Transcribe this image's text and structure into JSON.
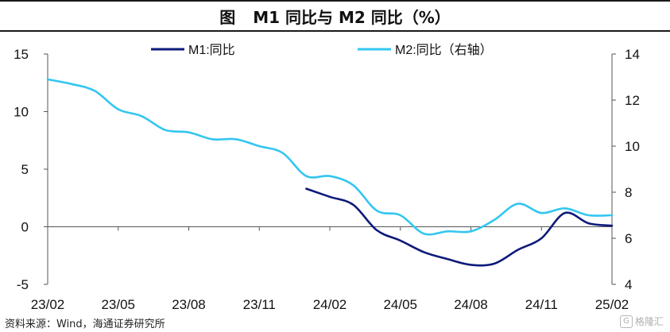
{
  "header": {
    "figure_label": "图",
    "title": "M1 同比与 M2 同比（%）"
  },
  "footer": {
    "source": "资料来源：Wind，海通证券研究所",
    "watermark": "格隆汇"
  },
  "chart_data": {
    "type": "line",
    "x_ticks": [
      "23/02",
      "23/05",
      "23/08",
      "23/11",
      "24/02",
      "24/05",
      "24/08",
      "24/11",
      "25/02"
    ],
    "left_axis": {
      "min": -5,
      "max": 15,
      "ticks": [
        "-5",
        "0",
        "5",
        "10",
        "15"
      ]
    },
    "right_axis": {
      "min": 4,
      "max": 14,
      "ticks": [
        "4",
        "6",
        "8",
        "10",
        "12",
        "14"
      ]
    },
    "legend": {
      "placement": "top",
      "entries": [
        {
          "label": "M1:同比",
          "color": "#0d1a7a"
        },
        {
          "label": "M2:同比（右轴）",
          "color": "#33c6f0"
        }
      ]
    },
    "series": [
      {
        "name": "M1:同比",
        "axis": "left",
        "color": "#0d1a7a",
        "points": [
          [
            "2024-01",
            3.3
          ],
          [
            "2024-02",
            2.6
          ],
          [
            "2024-03",
            1.9
          ],
          [
            "2024-04",
            -0.3
          ],
          [
            "2024-05",
            -1.2
          ],
          [
            "2024-06",
            -2.2
          ],
          [
            "2024-07",
            -2.8
          ],
          [
            "2024-08",
            -3.3
          ],
          [
            "2024-09",
            -3.2
          ],
          [
            "2024-10",
            -2.0
          ],
          [
            "2024-11",
            -1.0
          ],
          [
            "2024-12",
            1.2
          ],
          [
            "2025-01",
            0.3
          ],
          [
            "2025-02",
            0.1
          ]
        ]
      },
      {
        "name": "M2:同比（右轴）",
        "axis": "right",
        "color": "#33c6f0",
        "points": [
          [
            "2023-02",
            12.9
          ],
          [
            "2023-03",
            12.7
          ],
          [
            "2023-04",
            12.4
          ],
          [
            "2023-05",
            11.6
          ],
          [
            "2023-06",
            11.3
          ],
          [
            "2023-07",
            10.7
          ],
          [
            "2023-08",
            10.6
          ],
          [
            "2023-09",
            10.3
          ],
          [
            "2023-10",
            10.3
          ],
          [
            "2023-11",
            10.0
          ],
          [
            "2023-12",
            9.7
          ],
          [
            "2024-01",
            8.7
          ],
          [
            "2024-02",
            8.7
          ],
          [
            "2024-03",
            8.3
          ],
          [
            "2024-04",
            7.2
          ],
          [
            "2024-05",
            7.0
          ],
          [
            "2024-06",
            6.2
          ],
          [
            "2024-07",
            6.3
          ],
          [
            "2024-08",
            6.3
          ],
          [
            "2024-09",
            6.8
          ],
          [
            "2024-10",
            7.5
          ],
          [
            "2024-11",
            7.1
          ],
          [
            "2024-12",
            7.3
          ],
          [
            "2025-01",
            7.0
          ],
          [
            "2025-02",
            7.0
          ]
        ]
      }
    ]
  }
}
